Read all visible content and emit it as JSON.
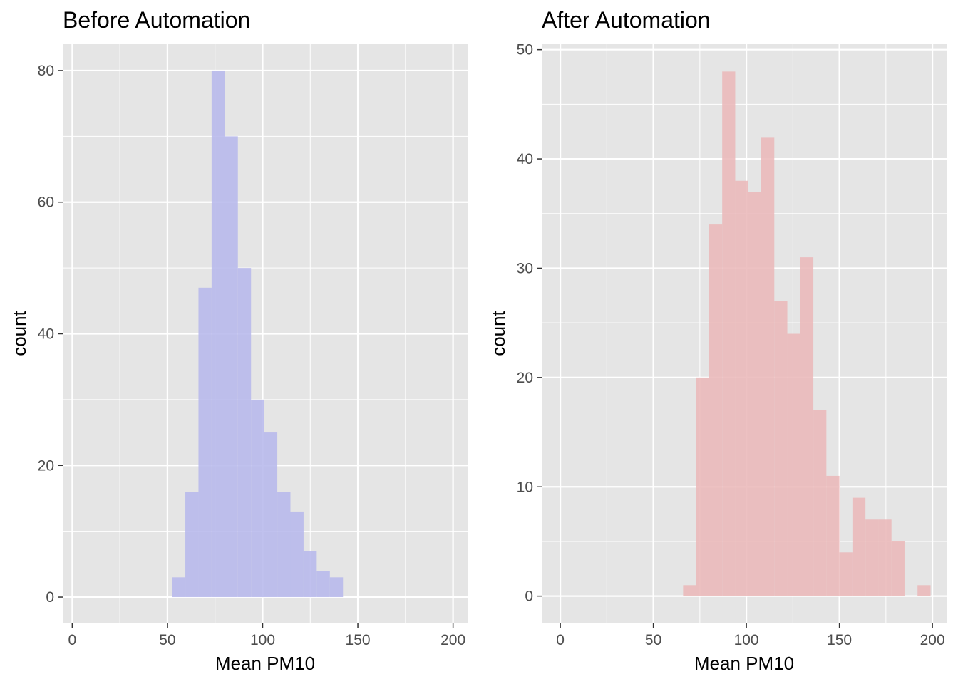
{
  "chart_data": [
    {
      "type": "histogram",
      "title": "Before Automation",
      "xlabel": "Mean PM10",
      "ylabel": "count",
      "xlim": [
        -5,
        208
      ],
      "ylim": [
        -4,
        84
      ],
      "x_ticks": [
        0,
        50,
        100,
        150,
        200
      ],
      "x_tick_labels": [
        "0",
        "50",
        "100",
        "150",
        "200"
      ],
      "y_ticks": [
        0,
        20,
        40,
        60,
        80
      ],
      "y_tick_labels": [
        "0",
        "20",
        "40",
        "60",
        "80"
      ],
      "grid": true,
      "panel_background": "#e5e5e5",
      "fill_color": "#b7b8ec",
      "bins": [
        {
          "x0": 52.5,
          "x1": 59.4,
          "count": 3
        },
        {
          "x0": 59.4,
          "x1": 66.3,
          "count": 16
        },
        {
          "x0": 66.3,
          "x1": 73.2,
          "count": 47
        },
        {
          "x0": 73.2,
          "x1": 80.1,
          "count": 80
        },
        {
          "x0": 80.1,
          "x1": 87.0,
          "count": 70
        },
        {
          "x0": 87.0,
          "x1": 93.9,
          "count": 50
        },
        {
          "x0": 93.9,
          "x1": 100.8,
          "count": 30
        },
        {
          "x0": 100.8,
          "x1": 107.7,
          "count": 25
        },
        {
          "x0": 107.7,
          "x1": 114.6,
          "count": 16
        },
        {
          "x0": 114.6,
          "x1": 121.5,
          "count": 13
        },
        {
          "x0": 121.5,
          "x1": 128.4,
          "count": 7
        },
        {
          "x0": 128.4,
          "x1": 135.3,
          "count": 4
        },
        {
          "x0": 135.3,
          "x1": 142.2,
          "count": 3
        }
      ]
    },
    {
      "type": "histogram",
      "title": "After Automation",
      "xlabel": "Mean PM10",
      "ylabel": "count",
      "xlim": [
        -10,
        208
      ],
      "ylim": [
        -2.5,
        50.5
      ],
      "x_ticks": [
        0,
        50,
        100,
        150,
        200
      ],
      "x_tick_labels": [
        "0",
        "50",
        "100",
        "150",
        "200"
      ],
      "y_ticks": [
        0,
        10,
        20,
        30,
        40,
        50
      ],
      "y_tick_labels": [
        "0",
        "10",
        "20",
        "30",
        "40",
        "50"
      ],
      "grid": true,
      "panel_background": "#e5e5e5",
      "fill_color": "#eab8ba",
      "bins": [
        {
          "x0": 66.0,
          "x1": 73.0,
          "count": 1
        },
        {
          "x0": 73.0,
          "x1": 80.0,
          "count": 20
        },
        {
          "x0": 80.0,
          "x1": 87.0,
          "count": 34
        },
        {
          "x0": 87.0,
          "x1": 94.0,
          "count": 48
        },
        {
          "x0": 94.0,
          "x1": 101.0,
          "count": 38
        },
        {
          "x0": 101.0,
          "x1": 108.0,
          "count": 37
        },
        {
          "x0": 108.0,
          "x1": 115.0,
          "count": 42
        },
        {
          "x0": 115.0,
          "x1": 122.0,
          "count": 27
        },
        {
          "x0": 122.0,
          "x1": 129.0,
          "count": 24
        },
        {
          "x0": 129.0,
          "x1": 136.0,
          "count": 31
        },
        {
          "x0": 136.0,
          "x1": 143.0,
          "count": 17
        },
        {
          "x0": 143.0,
          "x1": 150.0,
          "count": 11
        },
        {
          "x0": 150.0,
          "x1": 157.0,
          "count": 4
        },
        {
          "x0": 157.0,
          "x1": 164.0,
          "count": 9
        },
        {
          "x0": 164.0,
          "x1": 171.0,
          "count": 7
        },
        {
          "x0": 171.0,
          "x1": 178.0,
          "count": 7
        },
        {
          "x0": 178.0,
          "x1": 185.0,
          "count": 5
        },
        {
          "x0": 192.0,
          "x1": 199.0,
          "count": 1
        }
      ]
    }
  ]
}
